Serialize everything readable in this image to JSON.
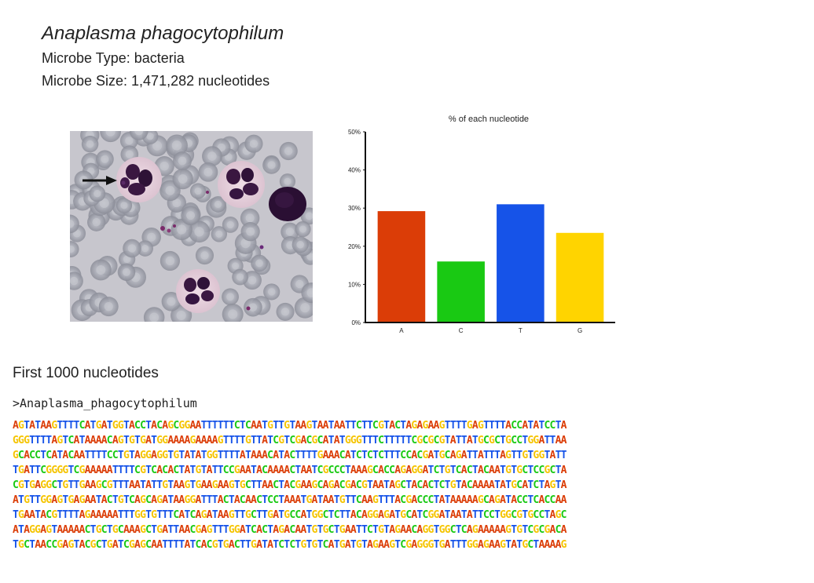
{
  "header": {
    "title": "Anaplasma phagocytophilum",
    "microbe_type": "Microbe Type: bacteria",
    "microbe_size": "Microbe Size: 1,471,282 nucleotides"
  },
  "image": {
    "icon": "blood-smear-micrograph"
  },
  "chart_data": {
    "type": "bar",
    "title": "% of each nucleotide",
    "categories": [
      "A",
      "C",
      "T",
      "G"
    ],
    "values": [
      29.2,
      16.0,
      31.0,
      23.5
    ],
    "colors": [
      "#db3d07",
      "#19c913",
      "#1653e8",
      "#ffd400"
    ],
    "ylim": [
      0,
      50
    ],
    "yticks": [
      0,
      10,
      20,
      30,
      40,
      50
    ],
    "ytick_labels": [
      "0%",
      "10%",
      "20%",
      "30%",
      "40%",
      "50%"
    ],
    "xlabel": "",
    "ylabel": "",
    "grid": false,
    "legend": "none"
  },
  "sequence": {
    "heading": "First 1000 nucleotides",
    "fasta_header": ">Anaplasma_phagocytophilum",
    "colors": {
      "A": "#db3d07",
      "C": "#19c913",
      "T": "#1653e8",
      "G": "#f5c400"
    },
    "lines": [
      "AGTATAAGTTTTCATGATGGTACCTACAGCGGAATTTTTTCTCAATGTTGTAAGTAATAATTCTTCGTACTAGAGAAGTTTTGAGTTTTACCATATCCTA",
      "GGGTTTTAGTCATAAAACAGTGTGATGGAAAAGAAAAGTTTTGTTATCGTCGACGCATATGGGTTTCTTTTTCGCGCGTATTATGCGCTGCCTGGATTAA",
      "GCACCTCATACAATTTTCCTGTAGGAGGTGTATATGGTTTTATAAACATACTTTTGAAACATCTCTCTTTCCACGATGCAGATTATTTAGTTGTGGTATT",
      "TGATTCGGGGTCGAAAAATTTTCGTCACACTATGTATTCCGAATACAAAACTAATCGCCCTAAAGCACCAGAGGATCTGTCACTACAATGTGCTCCGCTA",
      "CGTGAGGCTGTTGAAGCGTTTAATATTGTAAGTGAAGAAGTGCTTAACTACGAAGCAGACGACGTAATAGCTACACTCTGTACAAAATATGCATCTAGTA",
      "ATGTTGGAGTGAGAATACTGTCAGCAGATAAGGATTTACTACAACTCCTAAATGATAATGTTCAAGTTTACGACCCTATAAAAAGCAGATACCTCACCAA",
      "TGAATACGTTTTAGAAAAATTTGGTGTTTCATCAGATAAGTTGCTTGATGCCATGGCTCTTACAGGAGATGCATCGGATAATATTCCTGGCGTGCCTAGC",
      "ATAGGAGTAAAAACTGCTGCAAAGCTGATTAACGAGTTTGGATCACTAGACAATGTGCTGAATTCTGTAGAACAGGTGGCTCAGAAAAAGTGTCGCGACA",
      "TGCTAACCGAGTACGCTGATCGAGCAATTTTATCACGTGACTTGATATCTCTGTGTCATGATGTAGAAGTCGAGGGTGATTTGGAGAAGTATGCTAAAAG"
    ]
  }
}
